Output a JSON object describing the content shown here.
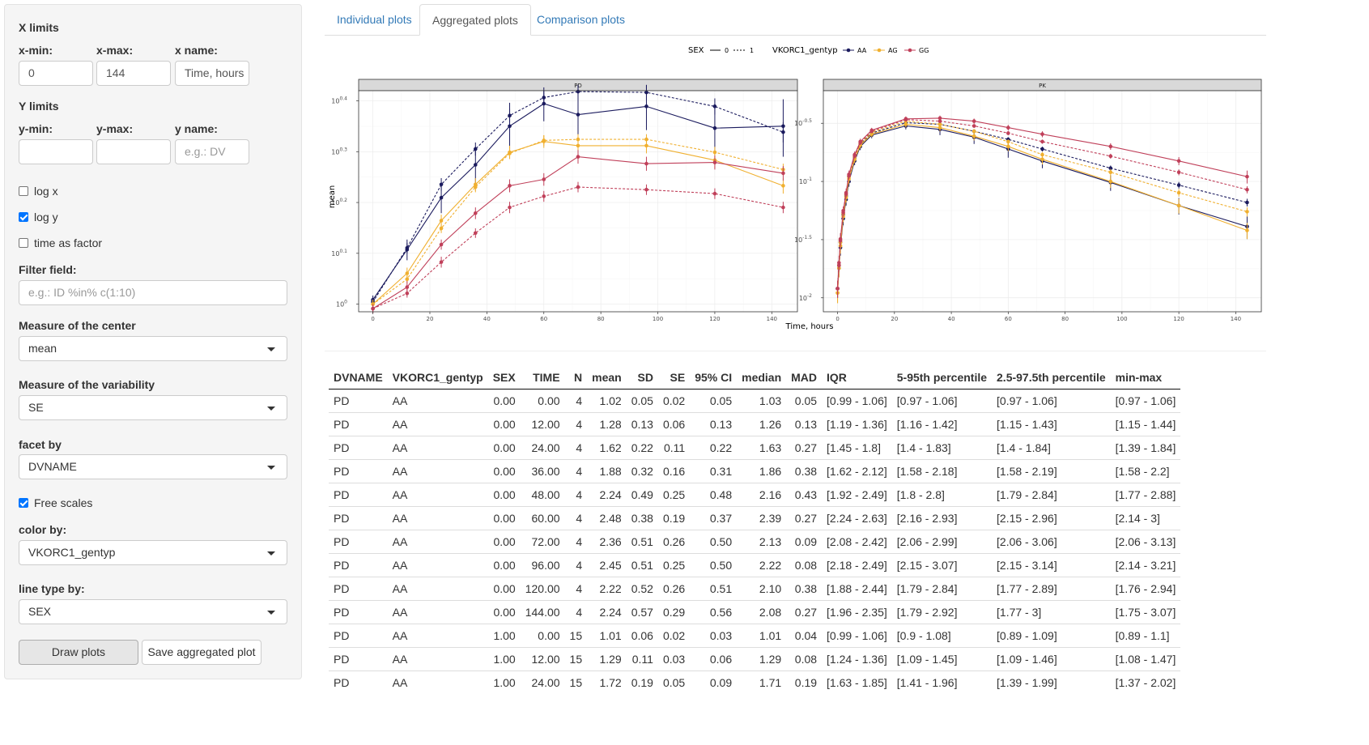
{
  "sidebar": {
    "x_limits_label": "X limits",
    "xmin_label": "x-min:",
    "xmin_value": "0",
    "xmax_label": "x-max:",
    "xmax_value": "144",
    "xname_label": "x name:",
    "xname_value": "Time, hours",
    "y_limits_label": "Y limits",
    "ymin_label": "y-min:",
    "ymin_value": "",
    "ymax_label": "y-max:",
    "ymax_value": "",
    "yname_label": "y name:",
    "yname_placeholder": "e.g.: DV",
    "logx_label": "log x",
    "logx_checked": false,
    "logy_label": "log y",
    "logy_checked": true,
    "time_factor_label": "time as factor",
    "time_factor_checked": false,
    "filter_label": "Filter field:",
    "filter_placeholder": "e.g.: ID %in% c(1:10)",
    "center_label": "Measure of the center",
    "center_value": "mean",
    "variability_label": "Measure of the variability",
    "variability_value": "SE",
    "facet_label": "facet by",
    "facet_value": "DVNAME",
    "free_scales_label": "Free scales",
    "free_scales_checked": true,
    "color_label": "color by:",
    "color_value": "VKORC1_gentyp",
    "linetype_label": "line type by:",
    "linetype_value": "SEX",
    "draw_button": "Draw plots",
    "save_button": "Save aggregated plot"
  },
  "tabs": [
    {
      "label": "Individual plots",
      "active": false
    },
    {
      "label": "Aggregated plots",
      "active": true
    },
    {
      "label": "Comparison plots",
      "active": false
    }
  ],
  "chart_data": {
    "type": "line",
    "xlabel": "Time, hours",
    "ylabel": "mean",
    "legend": {
      "linetype_title": "SEX",
      "linetype_entries": [
        "0",
        "1"
      ],
      "color_title": "VKORC1_gentyp",
      "color_entries": [
        "AA",
        "AG",
        "GG"
      ],
      "placement": "top"
    },
    "colors": {
      "AA": "#1b1b5e",
      "AG": "#f0b030",
      "GG": "#c0405a"
    },
    "panels": [
      {
        "title": "PD",
        "x_ticks": [
          0,
          20,
          40,
          60,
          80,
          100,
          120,
          140
        ],
        "x_range": [
          -5,
          149
        ],
        "y_log": true,
        "y_range_log10": [
          -0.015,
          0.42
        ],
        "y_ticks": [
          {
            "label": "10^0",
            "base": "10",
            "exp": "0",
            "value": 0
          },
          {
            "label": "10^0.1",
            "base": "10",
            "exp": "0.1",
            "value": 0.1
          },
          {
            "label": "10^0.2",
            "base": "10",
            "exp": "0.2",
            "value": 0.2
          },
          {
            "label": "10^0.3",
            "base": "10",
            "exp": "0.3",
            "value": 0.3
          },
          {
            "label": "10^0.4",
            "base": "10",
            "exp": "0.4",
            "value": 0.4
          }
        ],
        "x": [
          0,
          12,
          24,
          36,
          48,
          60,
          72,
          96,
          120,
          144
        ],
        "series": [
          {
            "name": "AA",
            "sex": "0",
            "values": [
              1.02,
              1.28,
              1.62,
              1.88,
              2.24,
              2.48,
              2.36,
              2.45,
              2.22,
              2.24
            ],
            "errors": [
              0.02,
              0.06,
              0.11,
              0.16,
              0.25,
              0.19,
              0.26,
              0.25,
              0.26,
              0.29
            ]
          },
          {
            "name": "AA",
            "sex": "1",
            "values": [
              1.01,
              1.29,
              1.72,
              2.02,
              2.35,
              2.55,
              2.62,
              2.61,
              2.45,
              2.18
            ],
            "errors": [
              0.02,
              0.03,
              0.05,
              0.06,
              0.07,
              0.08,
              0.08,
              0.09,
              0.09,
              0.1
            ]
          },
          {
            "name": "AG",
            "sex": "0",
            "values": [
              1.0,
              1.15,
              1.46,
              1.72,
              1.99,
              2.09,
              2.05,
              2.05,
              1.92,
              1.71
            ],
            "errors": [
              0.02,
              0.03,
              0.04,
              0.05,
              0.06,
              0.06,
              0.07,
              0.07,
              0.07,
              0.06
            ]
          },
          {
            "name": "AG",
            "sex": "1",
            "values": [
              1.0,
              1.12,
              1.41,
              1.7,
              1.98,
              2.1,
              2.11,
              2.11,
              1.99,
              1.84
            ],
            "errors": [
              0.02,
              0.02,
              0.03,
              0.04,
              0.05,
              0.05,
              0.05,
              0.05,
              0.05,
              0.05
            ]
          },
          {
            "name": "GG",
            "sex": "0",
            "values": [
              0.98,
              1.08,
              1.31,
              1.51,
              1.71,
              1.76,
              1.95,
              1.89,
              1.9,
              1.81
            ],
            "errors": [
              0.02,
              0.03,
              0.03,
              0.04,
              0.05,
              0.05,
              0.06,
              0.06,
              0.06,
              0.06
            ]
          },
          {
            "name": "GG",
            "sex": "1",
            "values": [
              0.98,
              1.05,
              1.21,
              1.38,
              1.55,
              1.63,
              1.7,
              1.68,
              1.65,
              1.55
            ],
            "errors": [
              0.02,
              0.02,
              0.03,
              0.03,
              0.04,
              0.04,
              0.04,
              0.04,
              0.04,
              0.04
            ]
          }
        ]
      },
      {
        "title": "PK",
        "x_ticks": [
          0,
          20,
          40,
          60,
          80,
          100,
          120,
          140
        ],
        "x_range": [
          -5,
          149
        ],
        "y_log": true,
        "y_range_log10": [
          -2.12,
          -0.22
        ],
        "y_ticks": [
          {
            "label": "10^-2",
            "base": "10",
            "exp": "-2",
            "value": -2
          },
          {
            "label": "10^-1.5",
            "base": "10",
            "exp": "-1.5",
            "value": -1.5
          },
          {
            "label": "10^-1",
            "base": "10",
            "exp": "-1",
            "value": -1
          },
          {
            "label": "10^-0.5",
            "base": "10",
            "exp": "-0.5",
            "value": -0.5
          }
        ],
        "x": [
          0,
          0.5,
          1,
          2,
          3,
          4,
          6,
          8,
          12,
          24,
          36,
          48,
          60,
          72,
          96,
          120,
          144
        ],
        "series": [
          {
            "name": "AA",
            "sex": "0",
            "values": [
              0.012,
              0.018,
              0.027,
              0.048,
              0.07,
              0.1,
              0.15,
              0.2,
              0.25,
              0.3,
              0.28,
              0.24,
              0.19,
              0.15,
              0.098,
              0.062,
              0.041
            ],
            "errors": [
              0.002,
              0.003,
              0.004,
              0.006,
              0.008,
              0.01,
              0.012,
              0.014,
              0.015,
              0.02,
              0.03,
              0.03,
              0.03,
              0.02,
              0.015,
              0.01,
              0.009
            ]
          },
          {
            "name": "AA",
            "sex": "1",
            "values": [
              0.012,
              0.019,
              0.03,
              0.052,
              0.075,
              0.11,
              0.16,
              0.21,
              0.26,
              0.32,
              0.31,
              0.27,
              0.23,
              0.19,
              0.13,
              0.093,
              0.066
            ],
            "errors": [
              0.002,
              0.002,
              0.003,
              0.004,
              0.005,
              0.007,
              0.008,
              0.01,
              0.01,
              0.012,
              0.012,
              0.011,
              0.01,
              0.009,
              0.007,
              0.006,
              0.005
            ]
          },
          {
            "name": "AG",
            "sex": "0",
            "values": [
              0.011,
              0.018,
              0.028,
              0.05,
              0.073,
              0.105,
              0.155,
              0.205,
              0.255,
              0.31,
              0.29,
              0.245,
              0.2,
              0.155,
              0.1,
              0.062,
              0.038
            ],
            "errors": [
              0.002,
              0.003,
              0.004,
              0.005,
              0.007,
              0.009,
              0.011,
              0.013,
              0.014,
              0.018,
              0.02,
              0.02,
              0.018,
              0.015,
              0.012,
              0.009,
              0.006
            ]
          },
          {
            "name": "AG",
            "sex": "1",
            "values": [
              0.011,
              0.019,
              0.03,
              0.053,
              0.077,
              0.11,
              0.162,
              0.212,
              0.265,
              0.33,
              0.31,
              0.27,
              0.22,
              0.17,
              0.12,
              0.08,
              0.055
            ],
            "errors": [
              0.002,
              0.002,
              0.003,
              0.004,
              0.005,
              0.007,
              0.008,
              0.01,
              0.01,
              0.012,
              0.012,
              0.011,
              0.01,
              0.009,
              0.008,
              0.006,
              0.005
            ]
          },
          {
            "name": "GG",
            "sex": "0",
            "values": [
              0.012,
              0.02,
              0.032,
              0.056,
              0.08,
              0.115,
              0.17,
              0.22,
              0.275,
              0.345,
              0.35,
              0.33,
              0.29,
              0.255,
              0.2,
              0.15,
              0.11
            ],
            "errors": [
              0.002,
              0.003,
              0.004,
              0.005,
              0.007,
              0.009,
              0.011,
              0.013,
              0.014,
              0.017,
              0.018,
              0.017,
              0.016,
              0.015,
              0.013,
              0.012,
              0.014
            ]
          },
          {
            "name": "GG",
            "sex": "1",
            "values": [
              0.012,
              0.019,
              0.031,
              0.054,
              0.078,
              0.112,
              0.166,
              0.216,
              0.27,
              0.34,
              0.33,
              0.3,
              0.26,
              0.22,
              0.165,
              0.12,
              0.085
            ],
            "errors": [
              0.002,
              0.002,
              0.003,
              0.004,
              0.005,
              0.007,
              0.008,
              0.01,
              0.01,
              0.012,
              0.012,
              0.011,
              0.01,
              0.009,
              0.008,
              0.007,
              0.006
            ]
          }
        ]
      }
    ]
  },
  "table": {
    "headers": [
      "DVNAME",
      "VKORC1_gentyp",
      "SEX",
      "TIME",
      "N",
      "mean",
      "SD",
      "SE",
      "95% CI",
      "median",
      "MAD",
      "IQR",
      "5-95th percentile",
      "2.5-97.5th percentile",
      "min-max"
    ],
    "rows": [
      [
        "PD",
        "AA",
        "0.00",
        "0.00",
        "4",
        "1.02",
        "0.05",
        "0.02",
        "0.05",
        "1.03",
        "0.05",
        "[0.99 - 1.06]",
        "[0.97 - 1.06]",
        "[0.97 - 1.06]",
        "[0.97 - 1.06]"
      ],
      [
        "PD",
        "AA",
        "0.00",
        "12.00",
        "4",
        "1.28",
        "0.13",
        "0.06",
        "0.13",
        "1.26",
        "0.13",
        "[1.19 - 1.36]",
        "[1.16 - 1.42]",
        "[1.15 - 1.43]",
        "[1.15 - 1.44]"
      ],
      [
        "PD",
        "AA",
        "0.00",
        "24.00",
        "4",
        "1.62",
        "0.22",
        "0.11",
        "0.22",
        "1.63",
        "0.27",
        "[1.45 - 1.8]",
        "[1.4 - 1.83]",
        "[1.4 - 1.84]",
        "[1.39 - 1.84]"
      ],
      [
        "PD",
        "AA",
        "0.00",
        "36.00",
        "4",
        "1.88",
        "0.32",
        "0.16",
        "0.31",
        "1.86",
        "0.38",
        "[1.62 - 2.12]",
        "[1.58 - 2.18]",
        "[1.58 - 2.19]",
        "[1.58 - 2.2]"
      ],
      [
        "PD",
        "AA",
        "0.00",
        "48.00",
        "4",
        "2.24",
        "0.49",
        "0.25",
        "0.48",
        "2.16",
        "0.43",
        "[1.92 - 2.49]",
        "[1.8 - 2.8]",
        "[1.79 - 2.84]",
        "[1.77 - 2.88]"
      ],
      [
        "PD",
        "AA",
        "0.00",
        "60.00",
        "4",
        "2.48",
        "0.38",
        "0.19",
        "0.37",
        "2.39",
        "0.27",
        "[2.24 - 2.63]",
        "[2.16 - 2.93]",
        "[2.15 - 2.96]",
        "[2.14 - 3]"
      ],
      [
        "PD",
        "AA",
        "0.00",
        "72.00",
        "4",
        "2.36",
        "0.51",
        "0.26",
        "0.50",
        "2.13",
        "0.09",
        "[2.08 - 2.42]",
        "[2.06 - 2.99]",
        "[2.06 - 3.06]",
        "[2.06 - 3.13]"
      ],
      [
        "PD",
        "AA",
        "0.00",
        "96.00",
        "4",
        "2.45",
        "0.51",
        "0.25",
        "0.50",
        "2.22",
        "0.08",
        "[2.18 - 2.49]",
        "[2.15 - 3.07]",
        "[2.15 - 3.14]",
        "[2.14 - 3.21]"
      ],
      [
        "PD",
        "AA",
        "0.00",
        "120.00",
        "4",
        "2.22",
        "0.52",
        "0.26",
        "0.51",
        "2.10",
        "0.38",
        "[1.88 - 2.44]",
        "[1.79 - 2.84]",
        "[1.77 - 2.89]",
        "[1.76 - 2.94]"
      ],
      [
        "PD",
        "AA",
        "0.00",
        "144.00",
        "4",
        "2.24",
        "0.57",
        "0.29",
        "0.56",
        "2.08",
        "0.27",
        "[1.96 - 2.35]",
        "[1.79 - 2.92]",
        "[1.77 - 3]",
        "[1.75 - 3.07]"
      ],
      [
        "PD",
        "AA",
        "1.00",
        "0.00",
        "15",
        "1.01",
        "0.06",
        "0.02",
        "0.03",
        "1.01",
        "0.04",
        "[0.99 - 1.06]",
        "[0.9 - 1.08]",
        "[0.89 - 1.09]",
        "[0.89 - 1.1]"
      ],
      [
        "PD",
        "AA",
        "1.00",
        "12.00",
        "15",
        "1.29",
        "0.11",
        "0.03",
        "0.06",
        "1.29",
        "0.08",
        "[1.24 - 1.36]",
        "[1.09 - 1.45]",
        "[1.09 - 1.46]",
        "[1.08 - 1.47]"
      ],
      [
        "PD",
        "AA",
        "1.00",
        "24.00",
        "15",
        "1.72",
        "0.19",
        "0.05",
        "0.09",
        "1.71",
        "0.19",
        "[1.63 - 1.85]",
        "[1.41 - 1.96]",
        "[1.39 - 1.99]",
        "[1.37 - 2.02]"
      ]
    ]
  }
}
